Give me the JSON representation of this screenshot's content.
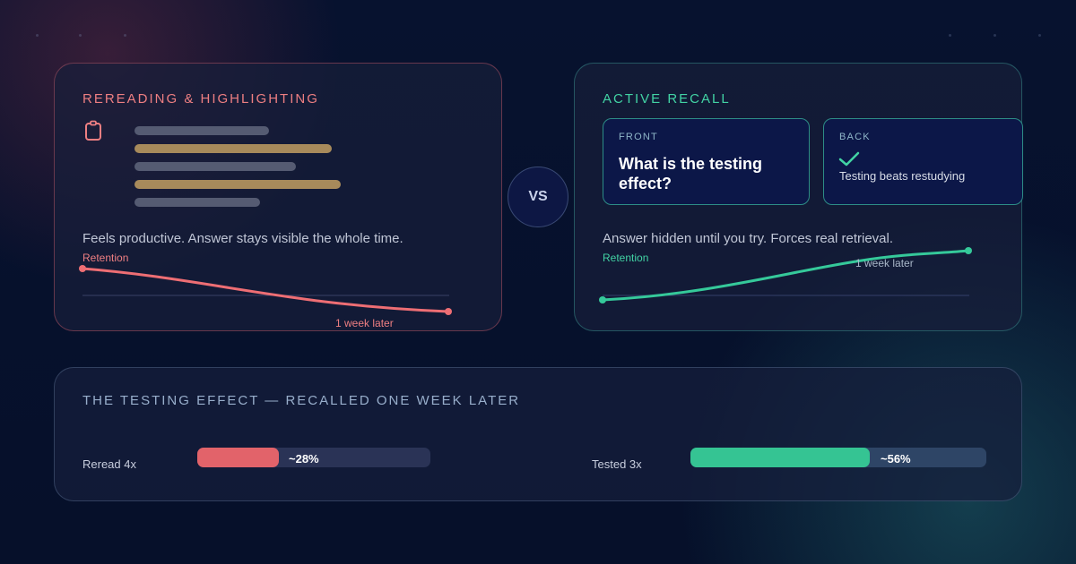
{
  "reread": {
    "title": "REREADING & HIGHLIGHTING",
    "icon": "clipboard-icon",
    "description": "Feels productive. Answer stays visible the whole time.",
    "retention_label": "Retention",
    "week_label": "1 week later",
    "color": "#ee7f82"
  },
  "vs_label": "VS",
  "recall": {
    "title": "ACTIVE RECALL",
    "front_label": "FRONT",
    "front_question": "What is the testing effect?",
    "back_label": "BACK",
    "back_icon": "checkmark-icon",
    "back_answer": "Testing beats restudying",
    "description": "Answer hidden until you try. Forces real retrieval.",
    "retention_label": "Retention",
    "week_label": "1 week later",
    "color": "#42d3a4"
  },
  "summary": {
    "title": "THE TESTING EFFECT — RECALLED ONE WEEK LATER",
    "bars": [
      {
        "label": "Reread 4x",
        "value_text": "~28%",
        "fraction": 0.35,
        "color": "#e2636a"
      },
      {
        "label": "Tested 3x",
        "value_text": "~56%",
        "fraction": 0.606,
        "color": "#35c493"
      }
    ]
  }
}
